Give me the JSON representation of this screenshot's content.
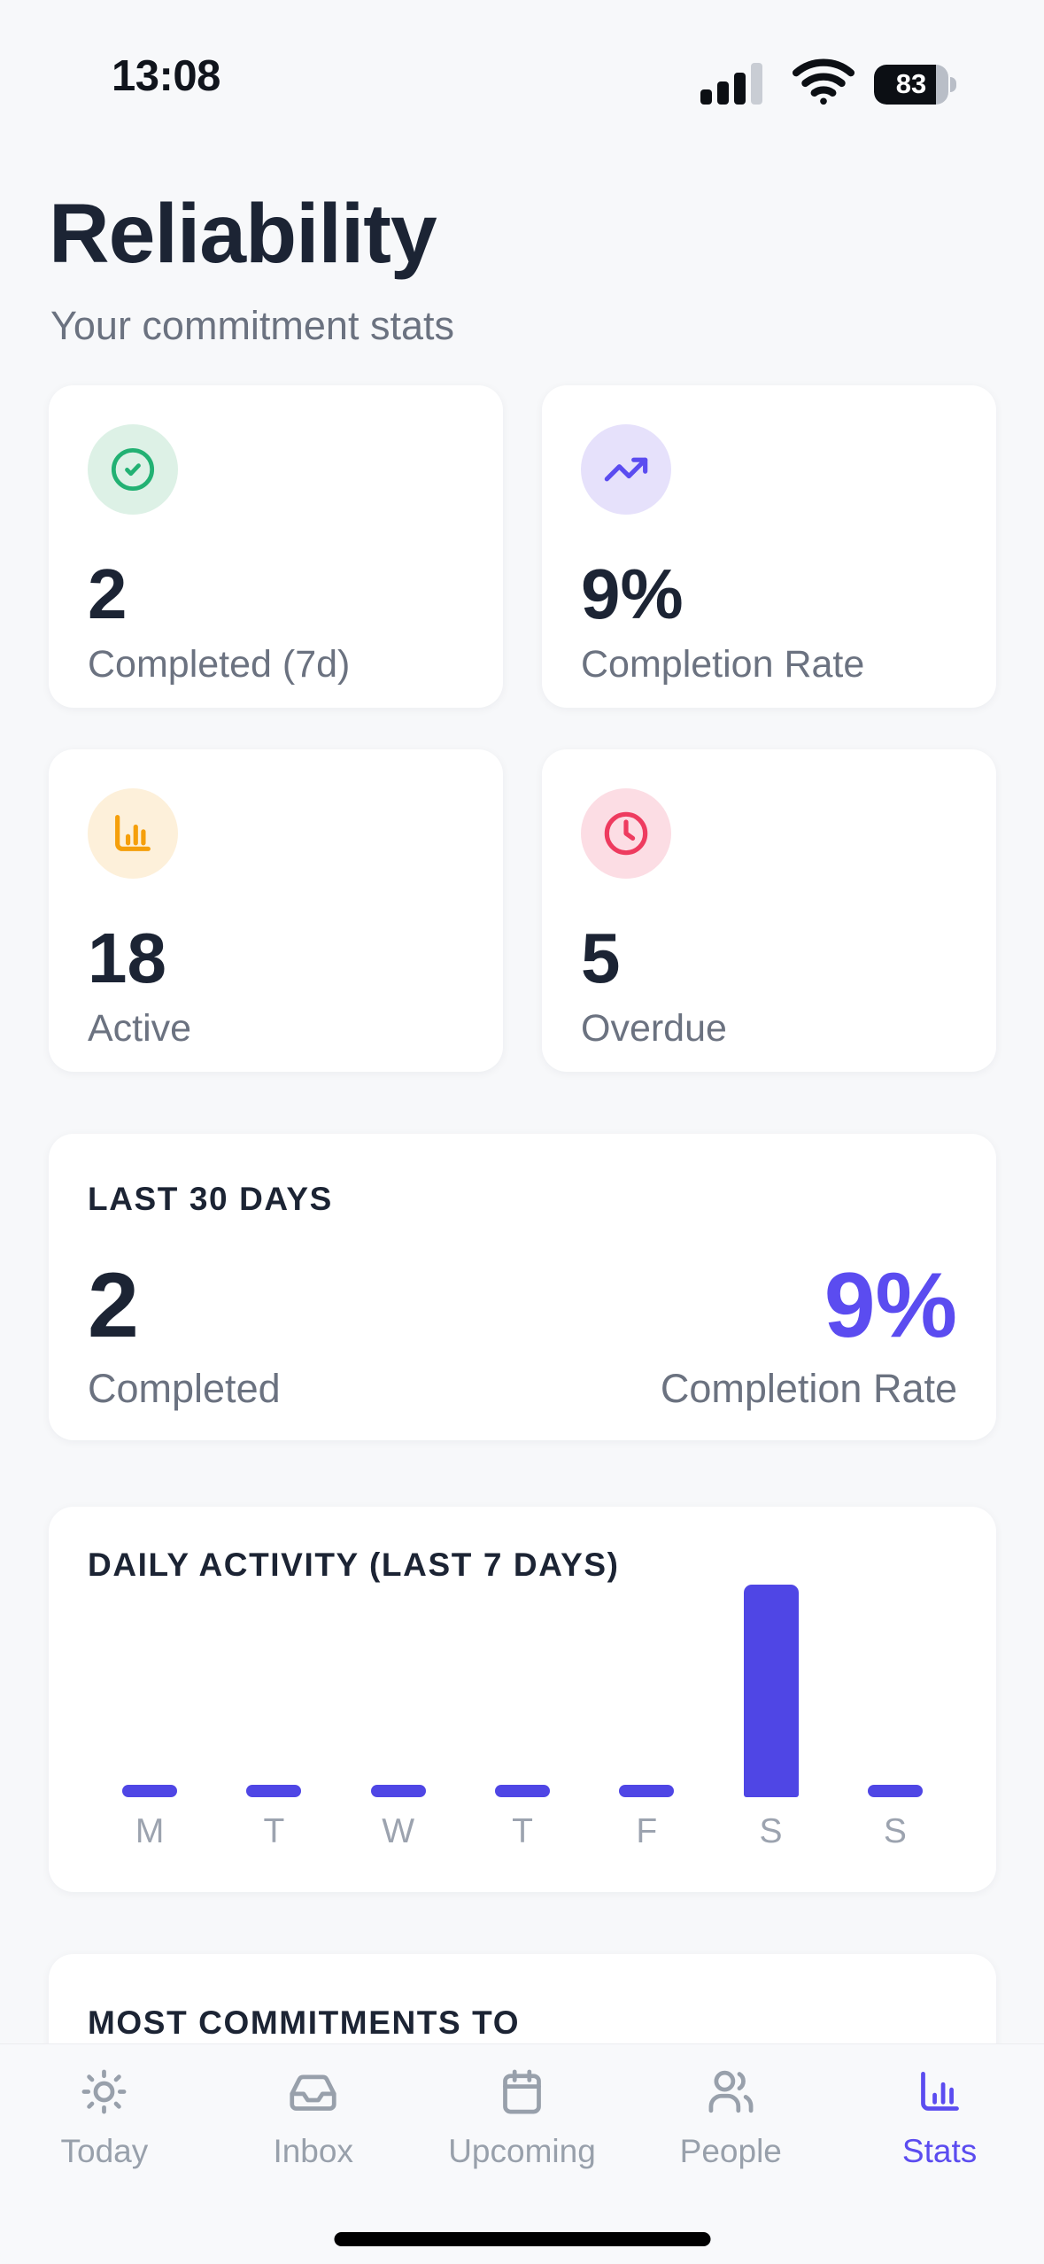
{
  "status_bar": {
    "time": "13:08",
    "battery_percent": "83",
    "signal_icon": "cellular-signal-icon",
    "wifi_icon": "wifi-icon",
    "battery_icon": "battery-icon"
  },
  "header": {
    "title": "Reliability",
    "subtitle": "Your commitment stats"
  },
  "stat_cards": [
    {
      "icon": "check-circle-icon",
      "icon_color": "#22b173",
      "icon_bg": "#ddf1e6",
      "value": "2",
      "label": "Completed (7d)"
    },
    {
      "icon": "trending-up-icon",
      "icon_color": "#5b4cf0",
      "icon_bg": "#e6e1fb",
      "value": "9%",
      "label": "Completion Rate"
    },
    {
      "icon": "bar-chart-icon",
      "icon_color": "#f59f0b",
      "icon_bg": "#fdf0da",
      "value": "18",
      "label": "Active"
    },
    {
      "icon": "clock-icon",
      "icon_color": "#ee3b5f",
      "icon_bg": "#fcdde4",
      "value": "5",
      "label": "Overdue"
    }
  ],
  "last_30_days": {
    "heading": "LAST 30 DAYS",
    "completed_value": "2",
    "completed_label": "Completed",
    "rate_value": "9%",
    "rate_label": "Completion Rate",
    "rate_color": "#5b4cf0"
  },
  "chart_data": {
    "type": "bar",
    "title": "DAILY ACTIVITY (LAST 7 DAYS)",
    "categories": [
      "M",
      "T",
      "W",
      "T",
      "F",
      "S",
      "S"
    ],
    "values": [
      0,
      0,
      0,
      0,
      0,
      2,
      0
    ],
    "ylim": [
      0,
      2
    ],
    "bar_color": "#4f46e5",
    "axis_label_color": "#9ca3af",
    "grid": false,
    "legend": false
  },
  "most_commitments": {
    "heading": "MOST COMMITMENTS TO"
  },
  "tab_bar": {
    "active_color": "#5b4cf0",
    "inactive_color": "#98a0ab",
    "items": [
      {
        "icon": "sun-icon",
        "label": "Today",
        "active": false
      },
      {
        "icon": "inbox-icon",
        "label": "Inbox",
        "active": false
      },
      {
        "icon": "calendar-icon",
        "label": "Upcoming",
        "active": false
      },
      {
        "icon": "users-icon",
        "label": "People",
        "active": false
      },
      {
        "icon": "bar-chart-icon",
        "label": "Stats",
        "active": true
      }
    ]
  }
}
